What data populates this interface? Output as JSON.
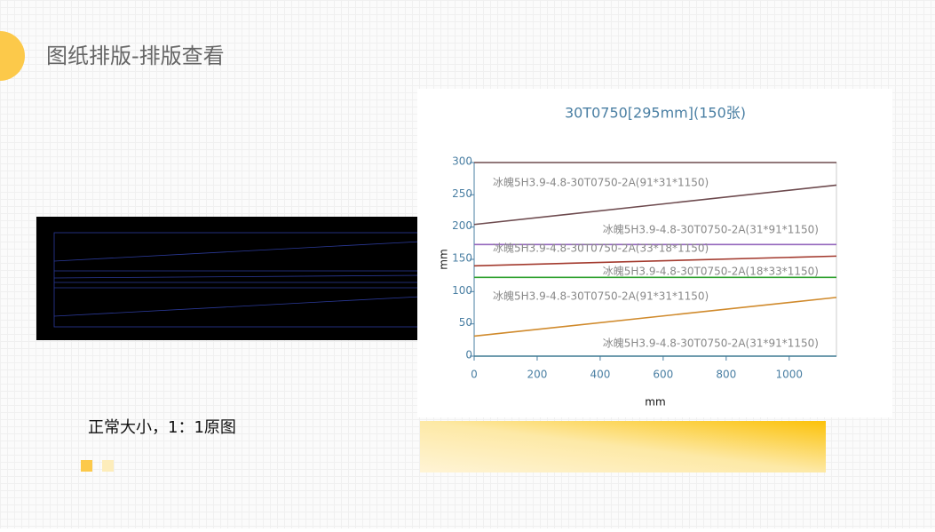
{
  "page": {
    "title": "图纸排版-排版查看",
    "caption": "正常大小，1：1原图"
  },
  "chart_data": {
    "type": "line",
    "title": "30T0750[295mm](150张)",
    "xlabel": "mm",
    "ylabel": "mm",
    "x": [
      0,
      1150
    ],
    "xlim": [
      0,
      1150
    ],
    "ylim": [
      0,
      300
    ],
    "xticks": [
      0,
      200,
      400,
      600,
      800,
      1000
    ],
    "yticks": [
      0,
      50,
      100,
      150,
      200,
      250,
      300
    ],
    "series": [
      {
        "name": "冰魄5H3.9-4.8-30T0750-2A(91*31*1150)",
        "color": "#6e4b4f",
        "values": [
          204,
          265
        ]
      },
      {
        "name": "冰魄5H3.9-4.8-30T0750-2A(31*91*1150)",
        "color": "#9467bd",
        "values": [
          173,
          173
        ]
      },
      {
        "name": "冰魄5H3.9-4.8-30T0750-2A(33*18*1150)",
        "color": "#a33a2e",
        "values": [
          140,
          155
        ]
      },
      {
        "name": "冰魄5H3.9-4.8-30T0750-2A(18*33*1150)",
        "color": "#2ca02c",
        "values": [
          122,
          122
        ]
      },
      {
        "name": "冰魄5H3.9-4.8-30T0750-2A(91*31*1150)",
        "color": "#d08a2c",
        "values": [
          31,
          91
        ]
      },
      {
        "name": "冰魄5H3.9-4.8-30T0750-2A(31*91*1150)",
        "color": "#3f7a94",
        "values": [
          0,
          0
        ]
      }
    ]
  }
}
